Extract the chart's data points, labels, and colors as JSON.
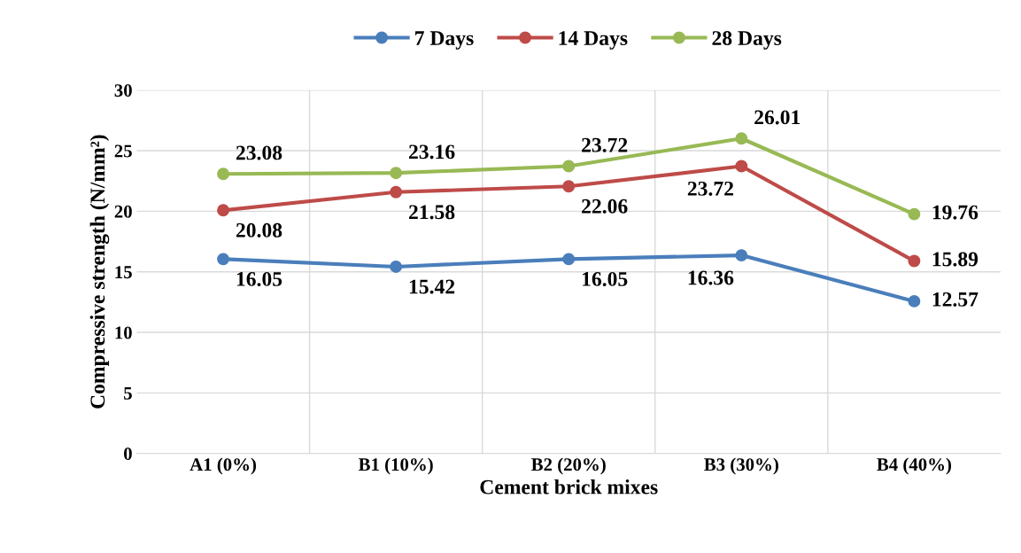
{
  "chart_data": {
    "type": "line",
    "xlabel": "Cement brick mixes",
    "ylabel": "Compressive strength (N/mm²)",
    "categories": [
      "A1 (0%)",
      "B1 (10%)",
      "B2 (20%)",
      "B3 (30%)",
      "B4 (40%)"
    ],
    "series": [
      {
        "name": "7 Days",
        "color": "#4a7ebb",
        "values": [
          16.05,
          15.42,
          16.05,
          16.36,
          12.57
        ]
      },
      {
        "name": "14 Days",
        "color": "#be4b48",
        "values": [
          20.08,
          21.58,
          22.06,
          23.72,
          15.89
        ]
      },
      {
        "name": "28 Days",
        "color": "#98b954",
        "values": [
          23.08,
          23.16,
          23.72,
          26.01,
          19.76
        ]
      }
    ],
    "ylim": [
      0,
      30
    ],
    "yticks": [
      0,
      5,
      10,
      15,
      20,
      25,
      30
    ],
    "grid": true,
    "legend": "top",
    "marker": "circle",
    "line_style": "solid",
    "data_labels": true
  }
}
